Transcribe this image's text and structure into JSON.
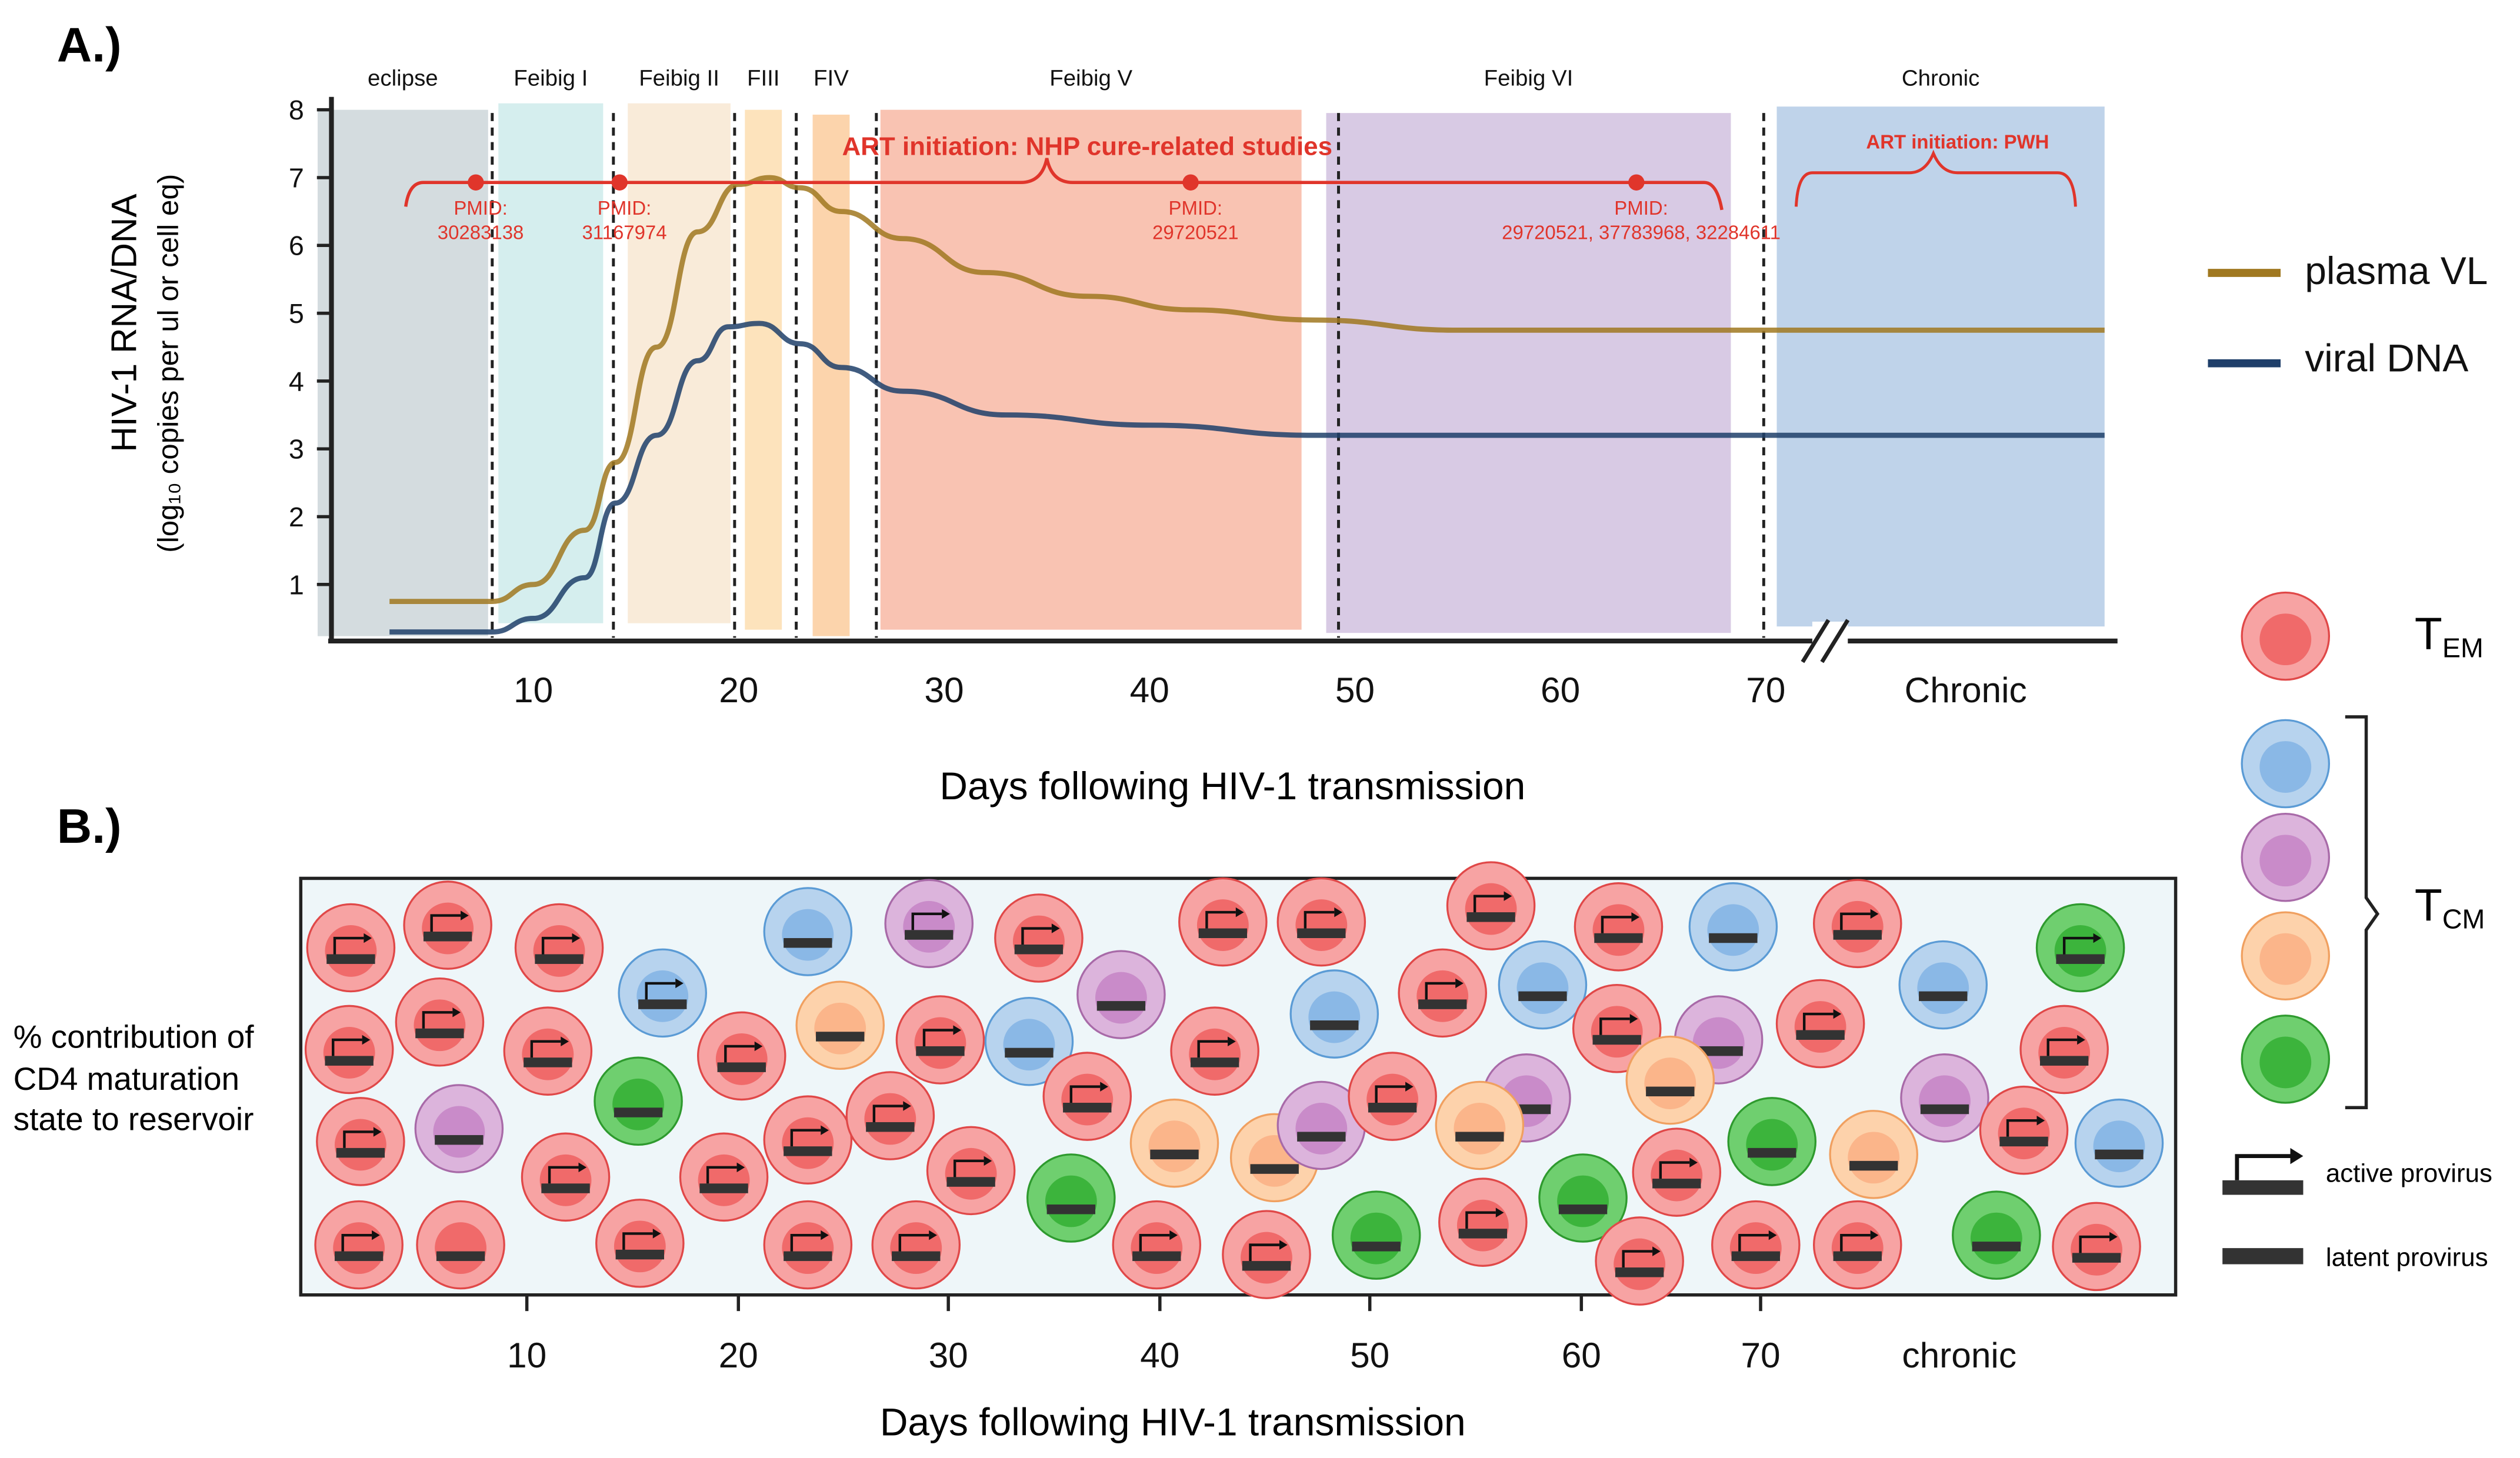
{
  "panel_a": {
    "label": "A.)",
    "y_label_1": "HIV-1 RNA/DNA",
    "y_label_2": "(log₁₀ copies per ul or cell eq)",
    "x_label": "Days following HIV-1 transmission",
    "y_ticks": [
      "1",
      "2",
      "3",
      "4",
      "5",
      "6",
      "7",
      "8"
    ],
    "x_ticks": [
      "10",
      "20",
      "30",
      "40",
      "50",
      "60",
      "70"
    ],
    "x_chronic_label": "Chronic",
    "phases": [
      {
        "name": "eclipse",
        "start": -0.5,
        "end": 7.8,
        "color": "#d4dcdf"
      },
      {
        "name": "Feibig I",
        "start": 8.3,
        "end": 13.4,
        "color": "#d5eeee"
      },
      {
        "name": "Feibig II",
        "start": 14.6,
        "end": 19.6,
        "color": "#f9ebd9"
      },
      {
        "name": "FIII",
        "start": 20.3,
        "end": 22.1,
        "color": "#fde3bc"
      },
      {
        "name": "FIV",
        "start": 23.6,
        "end": 25.4,
        "color": "#fcd4ac"
      },
      {
        "name": "Feibig V",
        "start": 26.9,
        "end": 47.4,
        "color": "#f9c3b2"
      },
      {
        "name": "Feibig VI",
        "start": 48.6,
        "end": 68.3,
        "color": "#d8cae4"
      },
      {
        "name": "Chronic",
        "start": null,
        "end": null,
        "color": "#bfd3ea"
      }
    ],
    "phase_boundaries_days": [
      8.0,
      13.9,
      19.8,
      22.8,
      26.7,
      49.2,
      69.9
    ],
    "annotations": {
      "nhp_title": "ART initiation: NHP cure-related studies",
      "pwh_title": "ART initiation: PWH",
      "pmid_label": "PMID:",
      "studies": [
        {
          "day": 7.2,
          "pmid": "30283138"
        },
        {
          "day": 14.2,
          "pmid": "31167974"
        },
        {
          "day": 42.0,
          "pmid": "29720521"
        },
        {
          "day": 63.7,
          "pmid": "29720521, 37783968,  32284611"
        }
      ]
    },
    "legend": [
      {
        "name": "plasma VL",
        "color": "#a07820"
      },
      {
        "name": "viral DNA",
        "color": "#1f3f6a"
      }
    ]
  },
  "chart_data": {
    "type": "line",
    "title": "",
    "xlabel": "Days following HIV-1 transmission",
    "ylabel": "HIV-1 RNA/DNA (log10 copies per ul or cell eq)",
    "ylim": [
      0.3,
      8
    ],
    "series": [
      {
        "name": "plasma VL",
        "points": [
          [
            3,
            0.75
          ],
          [
            8,
            0.75
          ],
          [
            10,
            1.0
          ],
          [
            12.5,
            1.8
          ],
          [
            14,
            2.8
          ],
          [
            16,
            4.5
          ],
          [
            18,
            6.2
          ],
          [
            20,
            6.9
          ],
          [
            21.5,
            7.0
          ],
          [
            23,
            6.85
          ],
          [
            25,
            6.5
          ],
          [
            28,
            6.1
          ],
          [
            32,
            5.6
          ],
          [
            37,
            5.25
          ],
          [
            42,
            5.05
          ],
          [
            48,
            4.9
          ],
          [
            55,
            4.75
          ],
          [
            70,
            4.75
          ]
        ],
        "chronic": 4.75
      },
      {
        "name": "viral DNA",
        "points": [
          [
            3,
            0.3
          ],
          [
            8,
            0.3
          ],
          [
            10,
            0.5
          ],
          [
            12.5,
            1.1
          ],
          [
            14,
            2.2
          ],
          [
            16,
            3.2
          ],
          [
            18,
            4.3
          ],
          [
            19.5,
            4.8
          ],
          [
            21,
            4.85
          ],
          [
            23,
            4.55
          ],
          [
            25,
            4.2
          ],
          [
            28,
            3.85
          ],
          [
            33,
            3.5
          ],
          [
            40,
            3.35
          ],
          [
            48,
            3.2
          ],
          [
            70,
            3.2
          ]
        ],
        "chronic": 3.2
      }
    ]
  },
  "panel_b": {
    "label": "B.)",
    "y_label": [
      "% contribution of",
      "CD4 maturation",
      "state to reservoir"
    ],
    "x_label": "Days following HIV-1 transmission",
    "x_ticks": [
      "10",
      "20",
      "30",
      "40",
      "50",
      "60",
      "70"
    ],
    "x_chronic_label": "chronic",
    "cells": [
      "Ea",
      "Ea",
      "Ea",
      "Ea",
      "Ea",
      "Ea",
      "Ea",
      "Pl",
      "Ea",
      "Ea",
      "El",
      "Ea",
      "Ba",
      "Gl",
      "Ea",
      "Ea",
      "Bl",
      "Ol",
      "Ea",
      "Ea",
      "Pa",
      "Ea",
      "Ea",
      "Ea",
      "Ea",
      "Ea",
      "Bl",
      "Pl",
      "Ea",
      "Gl",
      "Ea",
      "Ol",
      "Ea",
      "Ea",
      "Ol",
      "Ea",
      "Ea",
      "Bl",
      "Pl",
      "Ea",
      "Gl",
      "Ea",
      "Ea",
      "Bl",
      "Pl",
      "Ol",
      "Ea",
      "Gl",
      "Ea",
      "Ea",
      "Pl",
      "Ol",
      "Ea",
      "Ea",
      "Bl",
      "Gl",
      "Ea",
      "Ea",
      "Ea",
      "Ol",
      "Ea",
      "Bl",
      "Pl",
      "Ea",
      "Gl",
      "Ea",
      "Ga",
      "Bl",
      "Ea"
    ]
  },
  "cell_legend": {
    "tem": "T",
    "tem_sub": "EM",
    "tcm": "T",
    "tcm_sub": "CM",
    "active": "active provirus",
    "latent": "latent provirus"
  },
  "cell_colors": {
    "E": {
      "outer": "#f7a3a3",
      "stroke": "#e04848",
      "inner": "#f06a6a"
    },
    "B": {
      "outer": "#b7d3ee",
      "stroke": "#5b9bd5",
      "inner": "#8ab8e6"
    },
    "P": {
      "outer": "#dcb4dc",
      "stroke": "#a86aa8",
      "inner": "#c98bc9"
    },
    "O": {
      "outer": "#fdd2ab",
      "stroke": "#f0a060",
      "inner": "#fbb58a"
    },
    "G": {
      "outer": "#6fcf6f",
      "stroke": "#2e9a2e",
      "inner": "#3cb43c"
    }
  }
}
